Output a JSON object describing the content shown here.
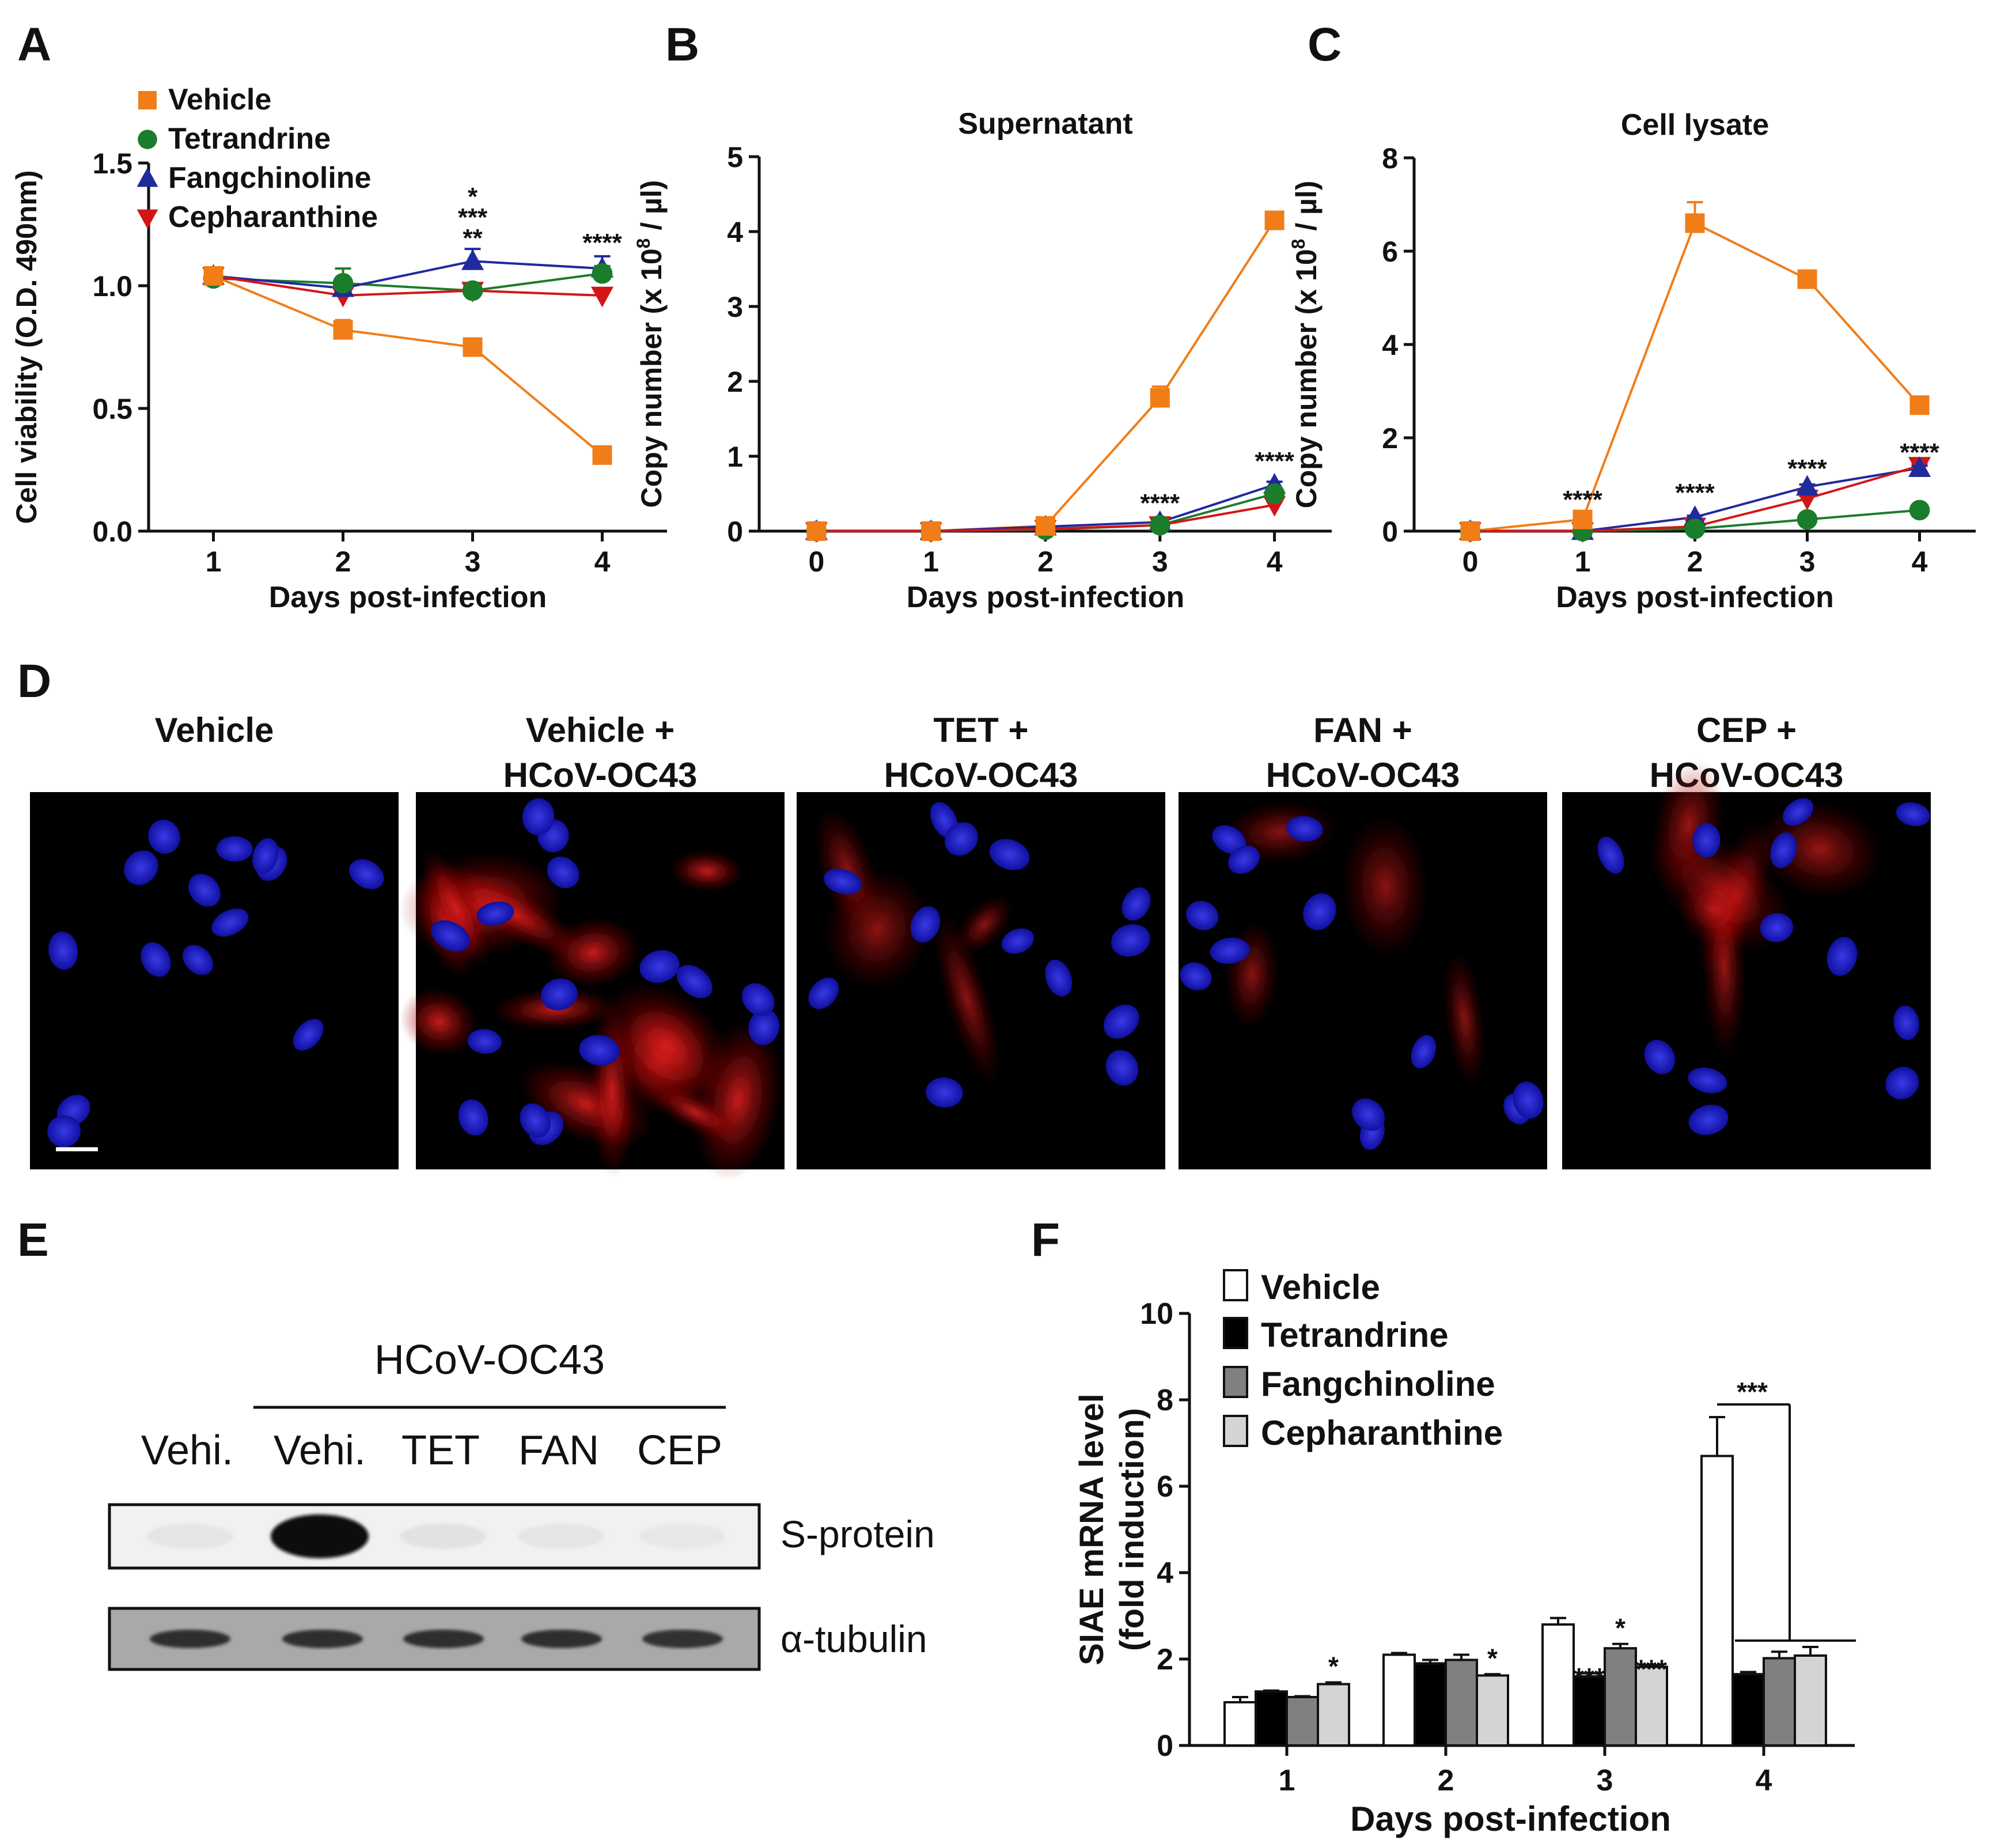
{
  "colors": {
    "vehicle": "#f07d18",
    "tetrandrine": "#1a7d2b",
    "fangchinoline": "#1f2a9c",
    "cepharanthine": "#d21616"
  },
  "panel_letters": [
    "A",
    "B",
    "C",
    "D",
    "E",
    "F"
  ],
  "chart_data": [
    {
      "id": "A",
      "type": "line",
      "title": "",
      "xlabel": "Days post-infection",
      "ylabel": "Cell viability (O.D. 490nm)",
      "x": [
        1,
        2,
        3,
        4
      ],
      "xlim": [
        0.5,
        4.5
      ],
      "ylim": [
        0,
        1.5
      ],
      "yticks": [
        "0.0",
        "0.5",
        "1.0",
        "1.5"
      ],
      "legend": [
        "Vehicle",
        "Tetrandrine",
        "Fangchinoline",
        "Cepharanthine"
      ],
      "series": [
        {
          "name": "Vehicle",
          "color": "#f07d18",
          "marker": "square",
          "values": [
            1.04,
            0.82,
            0.75,
            0.31
          ],
          "err": [
            0.02,
            0.04,
            0.02,
            0.02
          ]
        },
        {
          "name": "Tetrandrine",
          "color": "#1a7d2b",
          "marker": "circle",
          "values": [
            1.03,
            1.01,
            0.98,
            1.05
          ],
          "err": [
            0.01,
            0.06,
            0.02,
            0.03
          ]
        },
        {
          "name": "Fangchinoline",
          "color": "#1f2a9c",
          "marker": "triangle-up",
          "values": [
            1.04,
            0.99,
            1.1,
            1.07
          ],
          "err": [
            0.01,
            0.02,
            0.05,
            0.05
          ]
        },
        {
          "name": "Cepharanthine",
          "color": "#d21616",
          "marker": "triangle-down",
          "values": [
            1.04,
            0.96,
            0.98,
            0.96
          ],
          "err": [
            0.01,
            0.02,
            0.02,
            0.02
          ]
        }
      ],
      "annotations": [
        {
          "x": 3,
          "text": "*",
          "color": "#1a7d2b"
        },
        {
          "x": 3,
          "text": "***",
          "color": "#1f2a9c"
        },
        {
          "x": 3,
          "text": "**",
          "color": "#d21616"
        },
        {
          "x": 4,
          "text": "****",
          "color": "#111111"
        }
      ]
    },
    {
      "id": "B",
      "type": "line",
      "title": "Supernatant",
      "xlabel": "Days post-infection",
      "ylabel": "Copy number (x 10",
      "ylabel_sup": "8",
      "ylabel_tail": " / µl)",
      "x": [
        0,
        1,
        2,
        3,
        4
      ],
      "xlim": [
        -0.5,
        4.5
      ],
      "ylim": [
        0,
        5
      ],
      "yticks": [
        "0",
        "1",
        "2",
        "3",
        "4",
        "5"
      ],
      "series": [
        {
          "name": "Vehicle",
          "color": "#f07d18",
          "marker": "square",
          "values": [
            0,
            0,
            0.07,
            1.78,
            4.15
          ],
          "err": [
            0,
            0,
            0.03,
            0.15,
            0.05
          ]
        },
        {
          "name": "Tetrandrine",
          "color": "#1a7d2b",
          "marker": "circle",
          "values": [
            0,
            0,
            0.02,
            0.08,
            0.5
          ],
          "err": [
            0,
            0,
            0,
            0.02,
            0.04
          ]
        },
        {
          "name": "Fangchinoline",
          "color": "#1f2a9c",
          "marker": "triangle-up",
          "values": [
            0,
            0,
            0.06,
            0.12,
            0.62
          ],
          "err": [
            0,
            0,
            0,
            0.02,
            0.04
          ]
        },
        {
          "name": "Cepharanthine",
          "color": "#d21616",
          "marker": "triangle-down",
          "values": [
            0,
            0,
            0.03,
            0.08,
            0.35
          ],
          "err": [
            0,
            0,
            0,
            0.02,
            0.04
          ]
        }
      ],
      "annotations": [
        {
          "x": 3,
          "text": "****",
          "color": "#111111"
        },
        {
          "x": 4,
          "text": "****",
          "color": "#111111"
        }
      ]
    },
    {
      "id": "C",
      "type": "line",
      "title": "Cell lysate",
      "xlabel": "Days post-infection",
      "ylabel": "Copy number (x 10",
      "ylabel_sup": "8",
      "ylabel_tail": " / µl)",
      "x": [
        0,
        1,
        2,
        3,
        4
      ],
      "xlim": [
        -0.5,
        4.5
      ],
      "ylim": [
        0,
        8
      ],
      "yticks": [
        "0",
        "2",
        "4",
        "6",
        "8"
      ],
      "series": [
        {
          "name": "Vehicle",
          "color": "#f07d18",
          "marker": "square",
          "values": [
            0,
            0.25,
            6.6,
            5.4,
            2.7
          ],
          "err": [
            0,
            0.05,
            0.45,
            0.1,
            0.08
          ]
        },
        {
          "name": "Tetrandrine",
          "color": "#1a7d2b",
          "marker": "circle",
          "values": [
            0,
            0,
            0.05,
            0.25,
            0.45
          ],
          "err": [
            0,
            0,
            0,
            0.03,
            0.03
          ]
        },
        {
          "name": "Fangchinoline",
          "color": "#1f2a9c",
          "marker": "triangle-up",
          "values": [
            0,
            0,
            0.3,
            0.95,
            1.35
          ],
          "err": [
            0,
            0,
            0.03,
            0.05,
            0.05
          ]
        },
        {
          "name": "Cepharanthine",
          "color": "#d21616",
          "marker": "triangle-down",
          "values": [
            0,
            0,
            0.1,
            0.7,
            1.4
          ],
          "err": [
            0,
            0,
            0.02,
            0.05,
            0.05
          ]
        }
      ],
      "annotations": [
        {
          "x": 1,
          "text": "****",
          "color": "#111111"
        },
        {
          "x": 2,
          "text": "****",
          "color": "#111111"
        },
        {
          "x": 3,
          "text": "****",
          "color": "#111111"
        },
        {
          "x": 4,
          "text": "****",
          "color": "#111111"
        }
      ]
    },
    {
      "id": "F",
      "type": "bar",
      "title": "",
      "xlabel": "Days post-infection",
      "ylabel": "SIAE mRNA level",
      "ylabel2": "(fold induction)",
      "categories": [
        "1",
        "2",
        "3",
        "4"
      ],
      "ylim": [
        0,
        10
      ],
      "yticks": [
        "0",
        "2",
        "4",
        "6",
        "8",
        "10"
      ],
      "legend": [
        "Vehicle",
        "Tetrandrine",
        "Fangchinoline",
        "Cepharanthine"
      ],
      "series": [
        {
          "name": "Vehicle",
          "color": "#ffffff",
          "values": [
            1.0,
            2.1,
            2.8,
            6.7
          ],
          "err": [
            0.12,
            0.04,
            0.15,
            0.9
          ]
        },
        {
          "name": "Tetrandrine",
          "color": "#000000",
          "values": [
            1.25,
            1.9,
            1.6,
            1.65
          ],
          "err": [
            0.02,
            0.08,
            0.07,
            0.05
          ]
        },
        {
          "name": "Fangchinoline",
          "color": "#808080",
          "values": [
            1.12,
            1.98,
            2.25,
            2.02
          ],
          "err": [
            0.02,
            0.12,
            0.1,
            0.15
          ]
        },
        {
          "name": "Cepharanthine",
          "color": "#d4d4d4",
          "values": [
            1.42,
            1.62,
            1.82,
            2.08
          ],
          "err": [
            0.04,
            0.03,
            0.04,
            0.2
          ]
        }
      ],
      "annotations": [
        {
          "category": "1",
          "series": "Cepharanthine",
          "text": "*"
        },
        {
          "category": "2",
          "series": "Cepharanthine",
          "text": "*"
        },
        {
          "category": "3",
          "series": "Tetrandrine",
          "text": "***"
        },
        {
          "category": "3",
          "series": "Fangchinoline",
          "text": "*"
        },
        {
          "category": "3",
          "series": "Cepharanthine",
          "text": "***"
        },
        {
          "category": "4",
          "series": "Vehicle",
          "text": "***"
        }
      ]
    }
  ],
  "panel_D": {
    "images": [
      {
        "label_line1": "Vehicle",
        "label_line2": "",
        "intensity": 0
      },
      {
        "label_line1": "Vehicle +",
        "label_line2": "HCoV-OC43",
        "intensity": 1.0
      },
      {
        "label_line1": "TET +",
        "label_line2": "HCoV-OC43",
        "intensity": 0.3
      },
      {
        "label_line1": "FAN +",
        "label_line2": "HCoV-OC43",
        "intensity": 0.25
      },
      {
        "label_line1": "CEP +",
        "label_line2": "HCoV-OC43",
        "intensity": 0.45
      }
    ]
  },
  "panel_E": {
    "group_label": "HCoV-OC43",
    "lanes": [
      "Vehi.",
      "Vehi.",
      "TET",
      "FAN",
      "CEP"
    ],
    "bands": [
      "S-protein",
      "α-tubulin"
    ],
    "s_protein_intensity": [
      0.05,
      1.0,
      0.06,
      0.05,
      0.04
    ],
    "tubulin_intensity": [
      0.85,
      0.85,
      0.85,
      0.85,
      0.8
    ]
  }
}
